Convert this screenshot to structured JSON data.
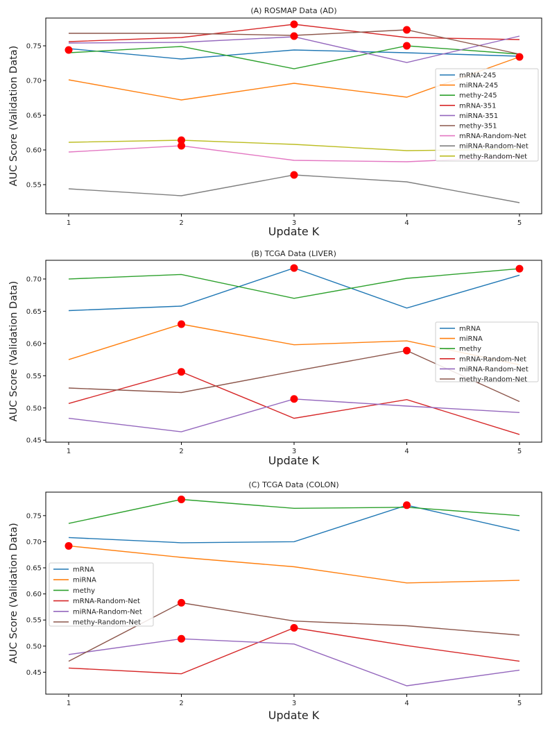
{
  "chart_data": [
    {
      "type": "line",
      "title": "(A) ROSMAP Data (AD)",
      "xlabel": "Update K",
      "ylabel": "AUC Score (Validation Data)",
      "x": [
        1,
        2,
        3,
        4,
        5
      ],
      "xticks": [
        "1",
        "2",
        "3",
        "4",
        "5"
      ],
      "ylim": [
        0.508,
        0.79
      ],
      "yticks": [
        "0.55",
        "0.60",
        "0.65",
        "0.70",
        "0.75"
      ],
      "ytick_values": [
        0.55,
        0.6,
        0.65,
        0.7,
        0.75
      ],
      "legend_position": "center-right",
      "series": [
        {
          "name": "mRNA-245",
          "color": "#1f77b4",
          "values": [
            0.746,
            0.731,
            0.744,
            0.74,
            0.735
          ]
        },
        {
          "name": "miRNA-245",
          "color": "#ff7f0e",
          "values": [
            0.701,
            0.672,
            0.696,
            0.676,
            0.734
          ]
        },
        {
          "name": "methy-245",
          "color": "#2ca02c",
          "values": [
            0.74,
            0.749,
            0.717,
            0.75,
            0.738
          ]
        },
        {
          "name": "mRNA-351",
          "color": "#d62728",
          "values": [
            0.756,
            0.762,
            0.781,
            0.762,
            0.759
          ]
        },
        {
          "name": "miRNA-351",
          "color": "#9467bd",
          "values": [
            0.754,
            0.755,
            0.763,
            0.726,
            0.764
          ]
        },
        {
          "name": "methy-351",
          "color": "#8c564b",
          "values": [
            0.768,
            0.768,
            0.765,
            0.773,
            0.738
          ]
        },
        {
          "name": "mRNA-Random-Net",
          "color": "#e377c2",
          "values": [
            0.597,
            0.606,
            0.585,
            0.583,
            0.59
          ]
        },
        {
          "name": "miRNA-Random-Net",
          "color": "#7f7f7f",
          "values": [
            0.544,
            0.534,
            0.564,
            0.554,
            0.524
          ]
        },
        {
          "name": "methy-Random-Net",
          "color": "#bcbd22",
          "values": [
            0.611,
            0.614,
            0.608,
            0.599,
            0.601
          ]
        }
      ],
      "highlights": [
        {
          "x": 1,
          "y": 0.744
        },
        {
          "x": 2,
          "y": 0.614
        },
        {
          "x": 2,
          "y": 0.606
        },
        {
          "x": 3,
          "y": 0.781
        },
        {
          "x": 3,
          "y": 0.764
        },
        {
          "x": 3,
          "y": 0.564
        },
        {
          "x": 4,
          "y": 0.773
        },
        {
          "x": 4,
          "y": 0.75
        },
        {
          "x": 5,
          "y": 0.734
        }
      ]
    },
    {
      "type": "line",
      "title": "(B) TCGA Data (LIVER)",
      "xlabel": "Update K",
      "ylabel": "AUC Score (Validation Data)",
      "x": [
        1,
        2,
        3,
        4,
        5
      ],
      "xticks": [
        "1",
        "2",
        "3",
        "4",
        "5"
      ],
      "ylim": [
        0.447,
        0.729
      ],
      "yticks": [
        "0.45",
        "0.50",
        "0.55",
        "0.60",
        "0.65",
        "0.70"
      ],
      "ytick_values": [
        0.45,
        0.5,
        0.55,
        0.6,
        0.65,
        0.7
      ],
      "legend_position": "center-right",
      "series": [
        {
          "name": "mRNA",
          "color": "#1f77b4",
          "values": [
            0.651,
            0.658,
            0.717,
            0.655,
            0.706
          ]
        },
        {
          "name": "miRNA",
          "color": "#ff7f0e",
          "values": [
            0.575,
            0.63,
            0.598,
            0.604,
            0.567
          ]
        },
        {
          "name": "methy",
          "color": "#2ca02c",
          "values": [
            0.7,
            0.707,
            0.67,
            0.701,
            0.716
          ]
        },
        {
          "name": "mRNA-Random-Net",
          "color": "#d62728",
          "values": [
            0.507,
            0.556,
            0.484,
            0.513,
            0.459
          ]
        },
        {
          "name": "miRNA-Random-Net",
          "color": "#9467bd",
          "values": [
            0.484,
            0.463,
            0.514,
            0.503,
            0.493
          ]
        },
        {
          "name": "methy-Random-Net",
          "color": "#8c564b",
          "values": [
            0.531,
            0.524,
            0.557,
            0.589,
            0.51
          ]
        }
      ],
      "highlights": [
        {
          "x": 2,
          "y": 0.63
        },
        {
          "x": 2,
          "y": 0.556
        },
        {
          "x": 3,
          "y": 0.717
        },
        {
          "x": 3,
          "y": 0.514
        },
        {
          "x": 4,
          "y": 0.589
        },
        {
          "x": 5,
          "y": 0.716
        }
      ]
    },
    {
      "type": "line",
      "title": "(C) TCGA Data (COLON)",
      "xlabel": "Update K",
      "ylabel": "AUC Score (Validation Data)",
      "x": [
        1,
        2,
        3,
        4,
        5
      ],
      "xticks": [
        "1",
        "2",
        "3",
        "4",
        "5"
      ],
      "ylim": [
        0.408,
        0.795
      ],
      "yticks": [
        "0.45",
        "0.50",
        "0.55",
        "0.60",
        "0.65",
        "0.70",
        "0.75"
      ],
      "ytick_values": [
        0.45,
        0.5,
        0.55,
        0.6,
        0.65,
        0.7,
        0.75
      ],
      "legend_position": "center-left",
      "series": [
        {
          "name": "mRNA",
          "color": "#1f77b4",
          "values": [
            0.708,
            0.698,
            0.7,
            0.77,
            0.721
          ]
        },
        {
          "name": "miRNA",
          "color": "#ff7f0e",
          "values": [
            0.692,
            0.67,
            0.652,
            0.621,
            0.626
          ]
        },
        {
          "name": "methy",
          "color": "#2ca02c",
          "values": [
            0.735,
            0.781,
            0.764,
            0.766,
            0.75
          ]
        },
        {
          "name": "mRNA-Random-Net",
          "color": "#d62728",
          "values": [
            0.458,
            0.447,
            0.535,
            0.501,
            0.471
          ]
        },
        {
          "name": "miRNA-Random-Net",
          "color": "#9467bd",
          "values": [
            0.484,
            0.514,
            0.504,
            0.424,
            0.454
          ]
        },
        {
          "name": "methy-Random-Net",
          "color": "#8c564b",
          "values": [
            0.471,
            0.583,
            0.548,
            0.539,
            0.521
          ]
        }
      ],
      "highlights": [
        {
          "x": 1,
          "y": 0.692
        },
        {
          "x": 2,
          "y": 0.781
        },
        {
          "x": 2,
          "y": 0.583
        },
        {
          "x": 2,
          "y": 0.514
        },
        {
          "x": 3,
          "y": 0.535
        },
        {
          "x": 4,
          "y": 0.77
        }
      ]
    }
  ]
}
